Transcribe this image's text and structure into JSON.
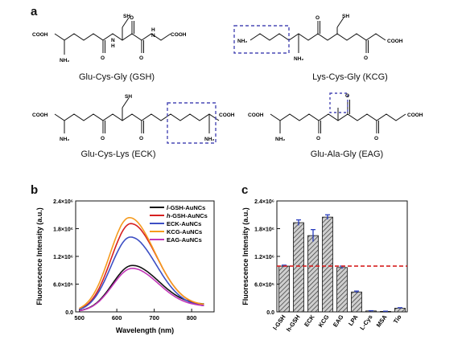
{
  "panel_a": {
    "letter": "a",
    "molecules": [
      {
        "id": "gsh",
        "name": "Glu-Cys-Gly (GSH)"
      },
      {
        "id": "kcg",
        "name": "Lys-Cys-Gly (KCG)"
      },
      {
        "id": "eck",
        "name": "Glu-Cys-Lys (ECK)"
      },
      {
        "id": "eag",
        "name": "Glu-Ala-Gly (EAG)"
      }
    ],
    "atoms": {
      "sh": "SH",
      "cooh": "COOH",
      "nh": "N",
      "h": "H",
      "nh2": "NH₂",
      "o": "O"
    },
    "highlight_color": "#4a4ab5"
  },
  "panel_b": {
    "letter": "b",
    "chart_data": {
      "type": "line",
      "xlabel": "Wavelength (nm)",
      "ylabel": "Fluorescence Intensity (a.u.)",
      "xlim": [
        490,
        860
      ],
      "ylim": [
        0,
        2400000
      ],
      "xticks": [
        500,
        600,
        700,
        800
      ],
      "yticks": [
        0,
        600000,
        1200000,
        1800000,
        2400000
      ],
      "ytick_labels": [
        "0.0",
        "6.0×10⁵",
        "1.2×10⁶",
        "1.8×10⁶",
        "2.4×10⁶"
      ],
      "series": [
        {
          "name": "l-GSH-AuNCs",
          "prefix": "l",
          "suffix": "-GSH-AuNCs",
          "color": "#111111",
          "peak_x": 640,
          "peak_y": 990000,
          "tail": 280000
        },
        {
          "name": "h-GSH-AuNCs",
          "prefix": "h",
          "suffix": "-GSH-AuNCs",
          "color": "#d62020",
          "peak_x": 637,
          "peak_y": 1900000,
          "tail": 220000
        },
        {
          "name": "ECK-AuNCs",
          "prefix": "",
          "suffix": "ECK-AuNCs",
          "color": "#3d4fc4",
          "peak_x": 636,
          "peak_y": 1610000,
          "tail": 200000
        },
        {
          "name": "KCG-AuNCs",
          "prefix": "",
          "suffix": "KCG-AuNCs",
          "color": "#f59b1e",
          "peak_x": 633,
          "peak_y": 2030000,
          "tail": 250000
        },
        {
          "name": "EAG-AuNCs",
          "prefix": "",
          "suffix": "EAG-AuNCs",
          "color": "#c236b8",
          "peak_x": 640,
          "peak_y": 930000,
          "tail": 220000
        }
      ]
    }
  },
  "panel_c": {
    "letter": "c",
    "chart_data": {
      "type": "bar",
      "ylabel": "Fluorescence Intensity (a.u.)",
      "ylim": [
        0,
        2400000
      ],
      "yticks": [
        0,
        600000,
        1200000,
        1800000,
        2400000
      ],
      "ytick_labels": [
        "0.0",
        "6.0×10⁵",
        "1.2×10⁶",
        "1.8×10⁶",
        "2.4×10⁶"
      ],
      "categories": [
        "l-GSH",
        "h-GSH",
        "ECK",
        "KCG",
        "EAG",
        "LPA",
        "L-Cys",
        "MSA",
        "Tio"
      ],
      "values": [
        990000,
        1930000,
        1650000,
        2050000,
        960000,
        430000,
        20000,
        10000,
        80000
      ],
      "errors": [
        20000,
        60000,
        130000,
        50000,
        30000,
        20000,
        5000,
        5000,
        10000
      ],
      "reference_line": 990000,
      "bar_color": "#8a8a8a",
      "error_color": "#2b3fbf",
      "ref_color": "#d62020"
    }
  }
}
